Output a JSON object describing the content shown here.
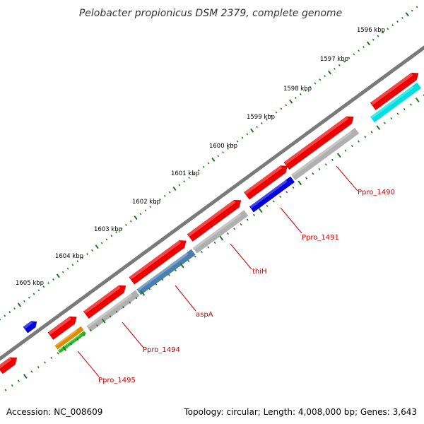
{
  "title": "Pelobacter propionicus DSM 2379, complete genome",
  "footer": {
    "accession": "Accession: NC_008609",
    "summary": "Topology: circular; Length: 4,008,000 bp; Genes: 3,643"
  },
  "ticks": [
    "1596 kbp",
    "1597 kbp",
    "1598 kbp",
    "1599 kbp",
    "1600 kbp",
    "1601 kbp",
    "1602 kbp",
    "1603 kbp",
    "1604 kbp",
    "1605 kbp"
  ],
  "genes": [
    {
      "label": "Ppro_1490",
      "color": "#b0b0b0"
    },
    {
      "label": "Ppro_1491",
      "color": "#0000dd"
    },
    {
      "label": "thiH",
      "color": "#b0b0b0"
    },
    {
      "label": "aspA",
      "color": "#4a7fb0"
    },
    {
      "label": "Ppro_1494",
      "color": "#b0b0b0"
    },
    {
      "label": "Ppro_1495",
      "color": "#e08a00"
    }
  ],
  "colors": {
    "forward": "#ee0000",
    "backbone": "#777777",
    "tick": "#1a7a1a",
    "cyan": "#00e0e0",
    "label": "#cc0000"
  }
}
